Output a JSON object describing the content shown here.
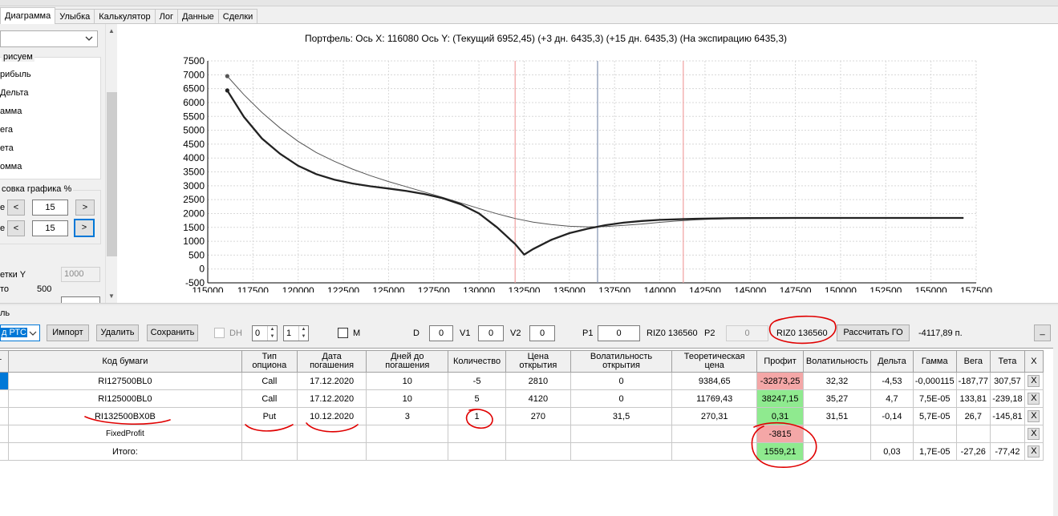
{
  "tabs": [
    "Диаграмма",
    "Улыбка",
    "Калькулятор",
    "Лог",
    "Данные",
    "Сделки"
  ],
  "left_panel": {
    "draw_group_title": "рисуем",
    "draw_options": [
      "рибыль",
      "Дельта",
      "амма",
      "ега",
      "ета",
      "омма"
    ],
    "scale_group_title": "совка графика %",
    "scale_rows": [
      {
        "label": "е",
        "value": "15",
        "prev": "<",
        "next": ">"
      },
      {
        "label": "е",
        "value": "15",
        "prev": "<",
        "next": ">"
      }
    ],
    "grid_y_label": "етки Y",
    "grid_y_value": "1000",
    "step_label": "то",
    "step_value": "500"
  },
  "chart": {
    "title": "Портфель: Ось X: 116080 Ось Y:  (Текущий 6952,45)  (+3 дн. 6435,3)  (+15 дн. 6435,3)  (На экспирацию 6435,3)"
  },
  "chart_data": {
    "type": "line",
    "title": "Портфель: Ось X: 116080 Ось Y:  (Текущий 6952,45)  (+3 дн. 6435,3)  (+15 дн. 6435,3)  (На экспирацию 6435,3)",
    "xlabel": "",
    "ylabel": "",
    "xlim": [
      115000,
      157500
    ],
    "ylim": [
      -500,
      7500
    ],
    "x_ticks": [
      115000,
      117500,
      120000,
      122500,
      125000,
      127500,
      130000,
      132500,
      135000,
      137500,
      140000,
      142500,
      145000,
      147500,
      150000,
      152500,
      155000,
      157500
    ],
    "y_ticks": [
      -500,
      0,
      500,
      1000,
      1500,
      2000,
      2500,
      3000,
      3500,
      4000,
      4500,
      5000,
      5500,
      6000,
      6500,
      7000,
      7500
    ],
    "grid": true,
    "vertical_lines": [
      {
        "x": 132000,
        "color": "#f0a0a0"
      },
      {
        "x": 136560,
        "color": "#8090b0"
      },
      {
        "x": 141300,
        "color": "#f0a0a0"
      }
    ],
    "series": [
      {
        "style": "thin",
        "color": "#555555",
        "x": [
          116080,
          117000,
          118000,
          119000,
          120000,
          121000,
          122000,
          123000,
          124000,
          125000,
          126000,
          127000,
          128000,
          129000,
          130000,
          131000,
          132000,
          133000,
          134000,
          135000,
          136000,
          137000,
          138000,
          139000,
          140000,
          141000,
          142000,
          143000,
          144000,
          145000,
          147500,
          150000,
          152500,
          155000,
          156800
        ],
        "y": [
          6952,
          6280,
          5640,
          5080,
          4600,
          4200,
          3880,
          3600,
          3360,
          3150,
          2960,
          2770,
          2580,
          2380,
          2180,
          1990,
          1820,
          1690,
          1600,
          1540,
          1520,
          1530,
          1570,
          1620,
          1680,
          1730,
          1770,
          1800,
          1820,
          1830,
          1840,
          1840,
          1840,
          1840,
          1840
        ]
      },
      {
        "style": "bold",
        "color": "#222222",
        "x": [
          116080,
          117000,
          118000,
          119000,
          120000,
          121000,
          122000,
          123000,
          124000,
          125000,
          126000,
          127000,
          128000,
          129000,
          130000,
          131000,
          132000,
          132500,
          133000,
          134000,
          135000,
          136000,
          137000,
          138000,
          139000,
          140000,
          141000,
          142000,
          143000,
          144000,
          145000,
          147500,
          150000,
          152500,
          155000,
          156800
        ],
        "y": [
          6435,
          5480,
          4700,
          4150,
          3720,
          3420,
          3220,
          3080,
          2980,
          2900,
          2810,
          2700,
          2550,
          2330,
          2000,
          1500,
          900,
          520,
          720,
          1050,
          1290,
          1450,
          1580,
          1670,
          1730,
          1770,
          1790,
          1810,
          1820,
          1830,
          1835,
          1840,
          1840,
          1840,
          1840,
          1840
        ]
      }
    ]
  },
  "lower": {
    "section_label": "ль",
    "select_value": "д РТС",
    "import_label": "Импорт",
    "delete_label": "Удалить",
    "save_label": "Сохранить",
    "dh_label": "DH",
    "spin1": "0",
    "spin2": "1",
    "m_label": "M",
    "d_label": "D",
    "d_value": "0",
    "v1_label": "V1",
    "v1_value": "0",
    "v2_label": "V2",
    "v2_value": "0",
    "p1_label": "P1",
    "p1_value": "0",
    "riz_label": "RIZ0 136560",
    "p2_label": "P2",
    "p2_value": "0",
    "riz_badge": "RIZ0 136560",
    "calc_go_label": "Рассчитать ГО",
    "go_value": "-4117,89 п.",
    "min_label": "_"
  },
  "table": {
    "headers": [
      "т",
      "Код бумаги",
      "Тип опциона",
      "Дата погашения",
      "Дней до погашения",
      "Количество",
      "Цена открытия",
      "Волатильность открытия",
      "Теоретическая цена",
      "Профит",
      "Волатильность",
      "Дельта",
      "Гамма",
      "Вега",
      "Тета",
      "X"
    ],
    "rows": [
      {
        "code": "RI127500BL0",
        "type": "Call",
        "date": "17.12.2020",
        "days": "10",
        "qty": "-5",
        "price": "2810",
        "vol_open": "0",
        "theor": "9384,65",
        "profit": "-32873,25",
        "profit_state": "neg",
        "vol": "32,32",
        "delta": "-4,53",
        "gamma": "-0,000115",
        "vega": "-187,77",
        "theta": "307,57",
        "x": "X"
      },
      {
        "code": "RI125000BL0",
        "type": "Call",
        "date": "17.12.2020",
        "days": "10",
        "qty": "5",
        "price": "4120",
        "vol_open": "0",
        "theor": "11769,43",
        "profit": "38247,15",
        "profit_state": "pos",
        "vol": "35,27",
        "delta": "4,7",
        "gamma": "7,5E-05",
        "vega": "133,81",
        "theta": "-239,18",
        "x": "X"
      },
      {
        "code": "RI132500BX0B",
        "type": "Put",
        "date": "10.12.2020",
        "days": "3",
        "qty": "1",
        "price": "270",
        "vol_open": "31,5",
        "theor": "270,31",
        "profit": "0,31",
        "profit_state": "pos",
        "vol": "31,51",
        "delta": "-0,14",
        "gamma": "5,7E-05",
        "vega": "26,7",
        "theta": "-145,81",
        "x": "X"
      },
      {
        "code": "FixedProfit",
        "type": "",
        "date": "",
        "days": "",
        "qty": "",
        "price": "",
        "vol_open": "",
        "theor": "",
        "profit": "-3815",
        "profit_state": "neg",
        "vol": "",
        "delta": "",
        "gamma": "",
        "vega": "",
        "theta": "",
        "x": "X"
      },
      {
        "code": "Итого:",
        "type": "",
        "date": "",
        "days": "",
        "qty": "",
        "price": "",
        "vol_open": "",
        "theor": "",
        "profit": "1559,21",
        "profit_state": "pos",
        "vol": "",
        "delta": "0,03",
        "gamma": "1,7E-05",
        "vega": "-27,26",
        "theta": "-77,42",
        "x": "X"
      }
    ]
  },
  "colors": {
    "negative": "#f4a7a7",
    "positive": "#8fea8f",
    "selection": "#0078d7",
    "annotation": "#e00000"
  }
}
